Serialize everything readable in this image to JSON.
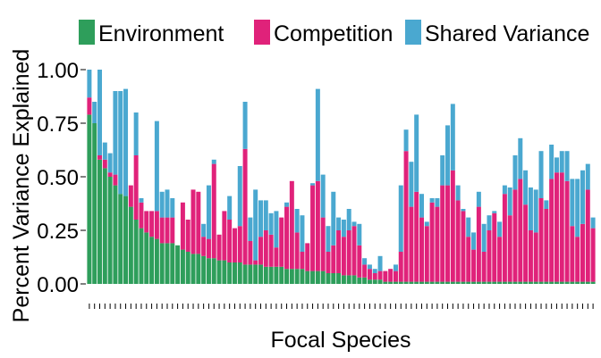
{
  "chart_data": {
    "type": "bar",
    "stacked": true,
    "xlabel": "Focal Species",
    "ylabel": "Percent Variance Explained",
    "ylim": [
      -0.12,
      1.12
    ],
    "yticks": [
      "0.00",
      "0.25",
      "0.50",
      "0.75",
      "1.00"
    ],
    "grid": false,
    "legend": "top",
    "series": [
      {
        "name": "Environment",
        "color": "#2e9e5b",
        "values": [
          0.79,
          0.75,
          0.58,
          0.54,
          0.5,
          0.46,
          0.42,
          0.41,
          0.36,
          0.3,
          0.26,
          0.24,
          0.22,
          0.21,
          0.19,
          0.19,
          0.19,
          0.18,
          0.16,
          0.15,
          0.14,
          0.14,
          0.13,
          0.12,
          0.12,
          0.11,
          0.11,
          0.1,
          0.1,
          0.1,
          0.09,
          0.09,
          0.09,
          0.09,
          0.08,
          0.08,
          0.08,
          0.08,
          0.07,
          0.07,
          0.07,
          0.07,
          0.06,
          0.06,
          0.06,
          0.06,
          0.05,
          0.05,
          0.05,
          0.04,
          0.04,
          0.04,
          0.03,
          0.03,
          0.02,
          0.02,
          0.02,
          0.01,
          0.01,
          0.01,
          0.01,
          0.01,
          0.01,
          0.01,
          0.01,
          0.01,
          0.01,
          0.01,
          0.01,
          0.01,
          0.01,
          0.01,
          0.01,
          0.01,
          0.01,
          0.01,
          0.01,
          0.01,
          0.01,
          0.01,
          0.01,
          0.01,
          0.01,
          0.01,
          0.01,
          0.01,
          0.01,
          0.01,
          0.01,
          0.01,
          0.01,
          0.01,
          0.01,
          0.01,
          0.01,
          0.01,
          0.01,
          0.01
        ]
      },
      {
        "name": "Competition",
        "color": "#e0227a",
        "values": [
          0.08,
          0.0,
          0.02,
          0.04,
          0.02,
          0.05,
          0.0,
          0.0,
          0.1,
          0.3,
          0.12,
          0.1,
          0.12,
          0.13,
          0.12,
          0.12,
          0.12,
          0.0,
          0.22,
          0.15,
          0.3,
          0.29,
          0.09,
          0.09,
          0.44,
          0.12,
          0.23,
          0.2,
          0.16,
          0.17,
          0.54,
          0.11,
          0.02,
          0.13,
          0.17,
          0.15,
          0.09,
          0.23,
          0.29,
          0.41,
          0.17,
          0.08,
          0.13,
          0.4,
          0.42,
          0.25,
          0.1,
          0.13,
          0.2,
          0.18,
          0.21,
          0.23,
          0.15,
          0.06,
          0.05,
          0.03,
          0.04,
          0.05,
          0.06,
          0.05,
          0.14,
          0.61,
          0.35,
          0.42,
          0.3,
          0.26,
          0.37,
          0.35,
          0.45,
          0.45,
          0.52,
          0.38,
          0.33,
          0.21,
          0.15,
          0.35,
          0.14,
          0.24,
          0.32,
          0.21,
          0.41,
          0.31,
          0.43,
          0.48,
          0.36,
          0.24,
          0.23,
          0.39,
          0.34,
          0.48,
          0.51,
          0.51,
          0.47,
          0.26,
          0.21,
          0.27,
          0.43,
          0.25,
          0.18
        ]
      },
      {
        "name": "Shared Variance",
        "color": "#4aa8d0",
        "values": [
          0.13,
          0.1,
          0.4,
          0.08,
          0.09,
          0.39,
          0.48,
          0.5,
          0.0,
          0.2,
          0.02,
          0.0,
          0.0,
          0.42,
          0.12,
          0.13,
          0.09,
          0.0,
          0.0,
          0.0,
          0.0,
          0.0,
          0.06,
          0.25,
          0.02,
          0.0,
          0.0,
          0.11,
          0.0,
          0.28,
          0.22,
          0.11,
          0.33,
          0.17,
          0.14,
          0.1,
          0.17,
          0.0,
          0.02,
          0.0,
          0.11,
          0.17,
          0.0,
          0.01,
          0.43,
          0.2,
          0.12,
          0.25,
          0.06,
          0.08,
          0.1,
          0.02,
          0.1,
          0.03,
          0.02,
          0.02,
          0.07,
          0.0,
          0.0,
          0.03,
          0.31,
          0.1,
          0.21,
          0.36,
          0.11,
          0.02,
          0.02,
          0.04,
          0.14,
          0.28,
          0.31,
          0.07,
          0.01,
          0.09,
          0.08,
          0.07,
          0.13,
          0.07,
          0.01,
          0.07,
          0.04,
          0.13,
          0.16,
          0.19,
          0.16,
          0.2,
          0.2,
          0.22,
          0.04,
          0.16,
          0.07,
          0.1,
          0.14,
          0.22,
          0.27,
          0.25,
          0.12,
          0.05,
          0.04
        ]
      }
    ]
  }
}
